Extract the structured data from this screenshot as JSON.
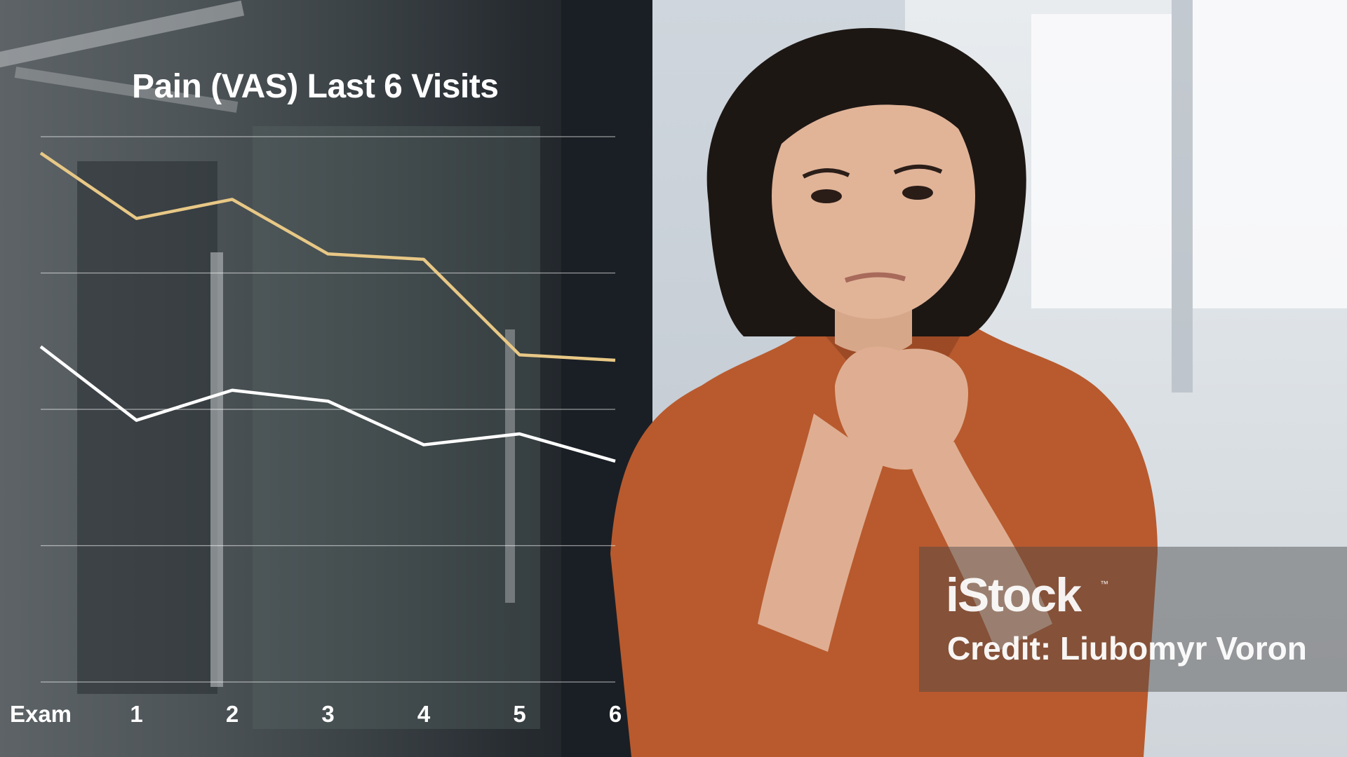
{
  "chart_data": {
    "type": "line",
    "title": "Pain (VAS) Last 6 Visits",
    "categories": [
      "Exam",
      "1",
      "2",
      "3",
      "4",
      "5",
      "6"
    ],
    "xlabel": "",
    "ylabel": "",
    "ylim": [
      0,
      10
    ],
    "grid": true,
    "series": [
      {
        "values": [
          9.7,
          8.5,
          8.85,
          7.85,
          7.75,
          6.0,
          5.9
        ],
        "color": "#e8c886"
      },
      {
        "values": [
          6.15,
          4.8,
          5.35,
          5.15,
          4.35,
          4.55,
          4.05
        ],
        "color": "#ffffff"
      }
    ]
  },
  "watermark": {
    "logo": "iStock",
    "tm": "™",
    "credit": "Credit: Liubomyr Voron"
  }
}
